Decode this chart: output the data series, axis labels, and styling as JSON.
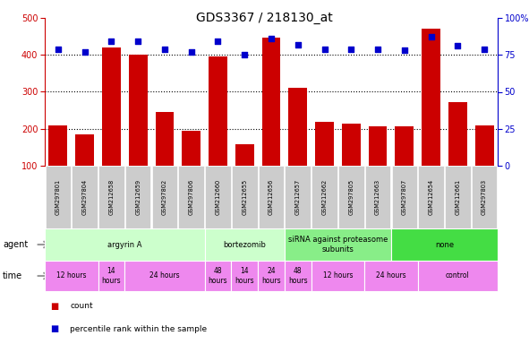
{
  "title": "GDS3367 / 218130_at",
  "samples": [
    "GSM297801",
    "GSM297804",
    "GSM212658",
    "GSM212659",
    "GSM297802",
    "GSM297806",
    "GSM212660",
    "GSM212655",
    "GSM212656",
    "GSM212657",
    "GSM212662",
    "GSM297805",
    "GSM212663",
    "GSM297807",
    "GSM212654",
    "GSM212661",
    "GSM297803"
  ],
  "bar_values": [
    210,
    185,
    420,
    400,
    245,
    195,
    395,
    157,
    447,
    310,
    218,
    213,
    206,
    207,
    472,
    272,
    210
  ],
  "dot_values": [
    79,
    77,
    84,
    84,
    79,
    77,
    84,
    75,
    86,
    82,
    79,
    79,
    79,
    78,
    87,
    81,
    79
  ],
  "bar_color": "#cc0000",
  "dot_color": "#0000cc",
  "ylim_left": [
    100,
    500
  ],
  "ylim_right": [
    0,
    100
  ],
  "yticks_left": [
    100,
    200,
    300,
    400,
    500
  ],
  "yticks_right": [
    0,
    25,
    50,
    75,
    100
  ],
  "ytick_labels_right": [
    "0",
    "25",
    "50",
    "75",
    "100%"
  ],
  "grid_values": [
    200,
    300,
    400
  ],
  "agent_groups": [
    {
      "label": "argyrin A",
      "start": 0,
      "end": 6,
      "color": "#ccffcc"
    },
    {
      "label": "bortezomib",
      "start": 6,
      "end": 9,
      "color": "#ccffcc"
    },
    {
      "label": "siRNA against proteasome\nsubunits",
      "start": 9,
      "end": 13,
      "color": "#88ee88"
    },
    {
      "label": "none",
      "start": 13,
      "end": 17,
      "color": "#55dd55"
    }
  ],
  "time_groups": [
    {
      "label": "12 hours",
      "start": 0,
      "end": 2
    },
    {
      "label": "14\nhours",
      "start": 2,
      "end": 3
    },
    {
      "label": "24 hours",
      "start": 3,
      "end": 6
    },
    {
      "label": "48\nhours",
      "start": 6,
      "end": 7
    },
    {
      "label": "14\nhours",
      "start": 7,
      "end": 8
    },
    {
      "label": "24\nhours",
      "start": 8,
      "end": 9
    },
    {
      "label": "48\nhours",
      "start": 9,
      "end": 10
    },
    {
      "label": "12 hours",
      "start": 10,
      "end": 12
    },
    {
      "label": "24 hours",
      "start": 12,
      "end": 14
    },
    {
      "label": "control",
      "start": 14,
      "end": 17
    }
  ],
  "bg_color": "#ffffff",
  "plot_bg_color": "#ffffff",
  "tick_bg_color": "#cccccc",
  "arrow_color": "#999999",
  "time_color": "#ee88ee",
  "agent_light_color": "#ccffcc",
  "agent_medium_color": "#88ee88",
  "agent_dark_color": "#44dd44"
}
